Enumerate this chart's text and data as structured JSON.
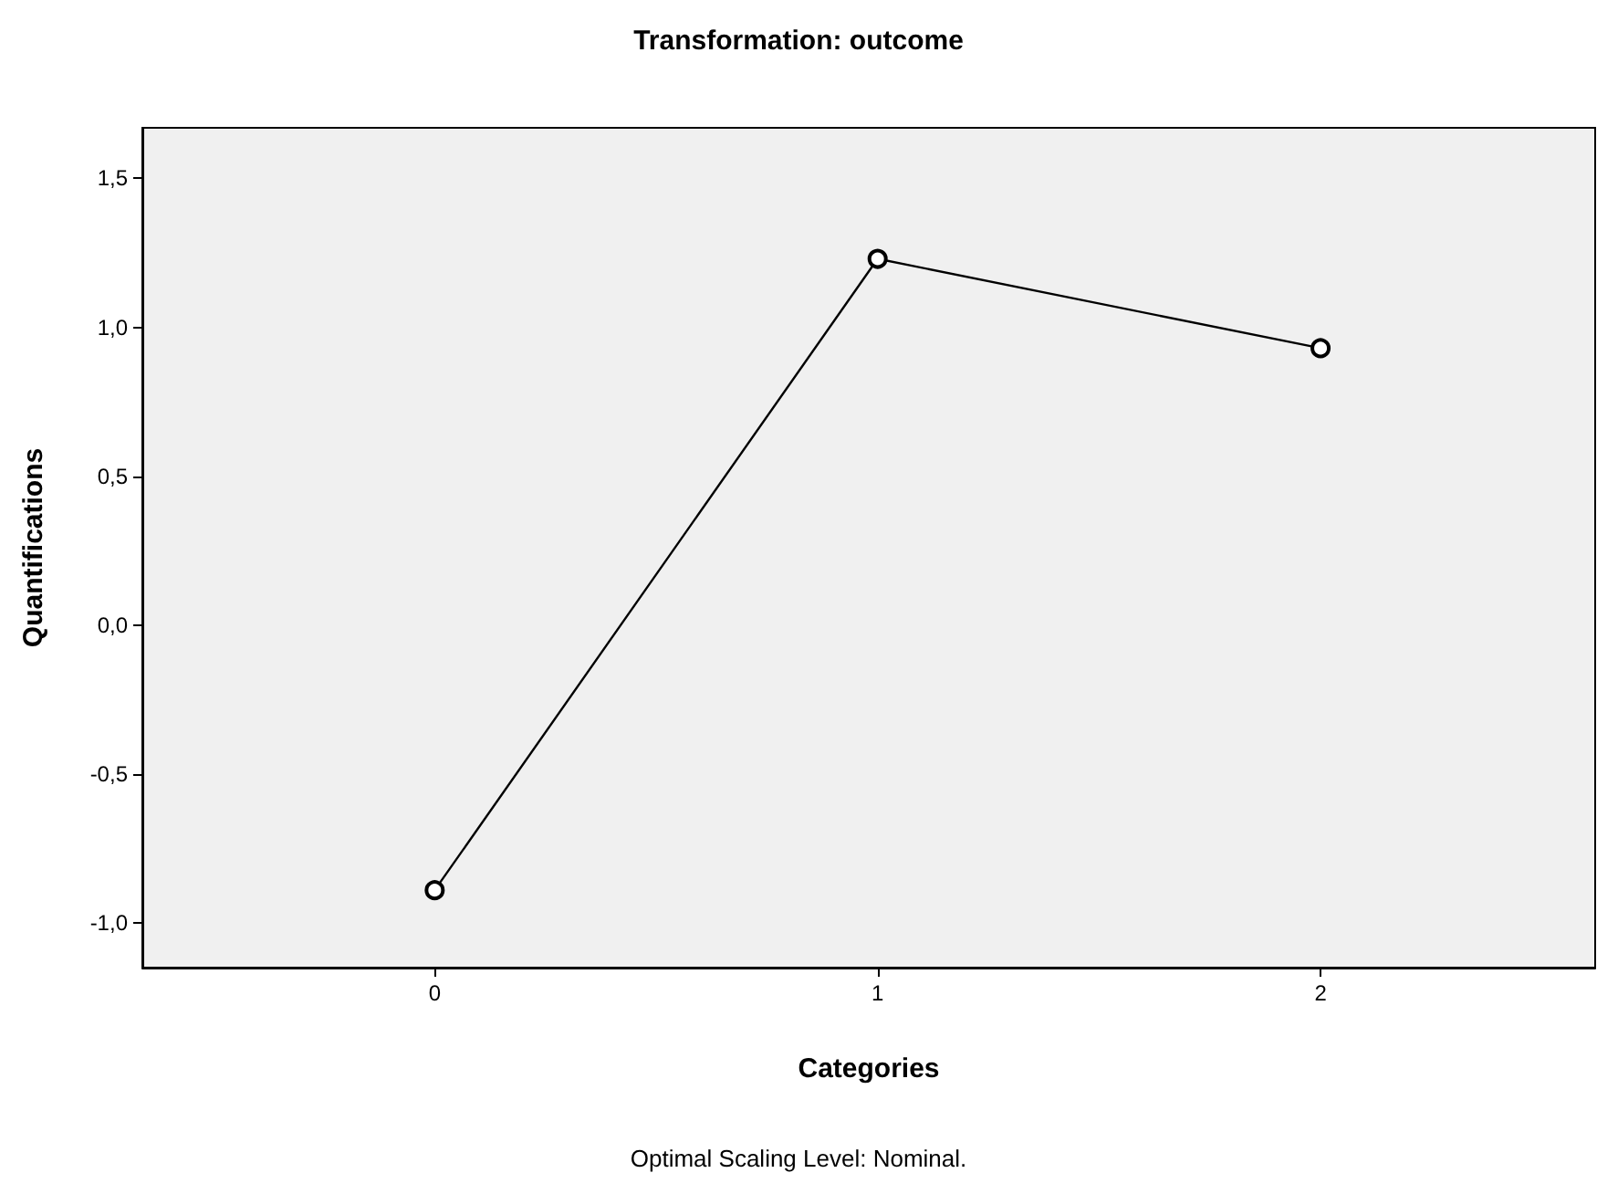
{
  "chart_data": {
    "type": "line",
    "title": "Transformation: outcome",
    "xlabel": "Categories",
    "ylabel": "Quantifications",
    "annotations": [
      "Optimal Scaling Level: Nominal."
    ],
    "x": [
      0,
      1,
      2
    ],
    "series": [
      {
        "color": "#000000",
        "values": [
          -0.89,
          1.23,
          0.93
        ]
      }
    ],
    "xlim": [
      -0.66,
      2.62
    ],
    "xticks": [
      0,
      1,
      2
    ],
    "ylim": [
      -1.15,
      1.67
    ],
    "yticks": [
      {
        "value": -1,
        "label": "-1,0"
      },
      {
        "value": -0.5,
        "label": "-0,5"
      },
      {
        "value": 0,
        "label": "0,0"
      },
      {
        "value": 0.5,
        "label": "0,5"
      },
      {
        "value": 1,
        "label": "1,0"
      },
      {
        "value": 1.5,
        "label": "1,5"
      }
    ],
    "grid": false,
    "marker": "circle",
    "line_style": "solid"
  }
}
